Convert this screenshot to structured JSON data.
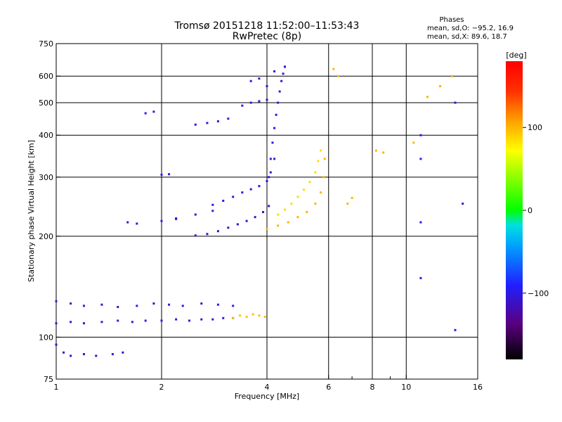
{
  "chart_data": {
    "type": "scatter",
    "title": "Tromsø 20151218 11:52:00–11:53:43",
    "subtitle": "RwPretec (8p)",
    "xlabel": "Frequency [MHz]",
    "ylabel": "Stationary phase Virtual Height [km]",
    "x_scale": "log2",
    "y_scale": "log",
    "xlim": [
      1,
      16
    ],
    "ylim": [
      75,
      750
    ],
    "x_ticks": [
      1,
      2,
      4,
      6,
      8,
      10,
      16
    ],
    "x_tick_labels": [
      "1",
      "2",
      "4",
      "6",
      "8",
      "10",
      "16"
    ],
    "x_minor_ticks": [
      7,
      9
    ],
    "y_ticks": [
      75,
      100,
      200,
      300,
      400,
      500,
      600,
      750
    ],
    "y_tick_labels": [
      "75",
      "100",
      "200",
      "300",
      "400",
      "500",
      "600",
      "750"
    ],
    "y_gridlines": [
      100,
      200,
      300,
      400,
      500,
      600
    ],
    "x_gridlines": [
      2,
      4,
      6,
      8,
      10
    ],
    "grid": true,
    "stats": {
      "heading": "Phases",
      "line1": "mean, sd,O: −95.2, 16.9",
      "line2": "mean, sd,X:  89.6, 18.7"
    },
    "colorbar": {
      "label": "[deg]",
      "min": -180,
      "max": 180,
      "ticks": [
        100,
        0,
        -100
      ],
      "tick_labels": [
        "100",
        "0",
        "−100"
      ],
      "colormap": "rainbow"
    },
    "series": [
      {
        "phase": -100,
        "x": [
          1.0,
          1.1,
          1.2,
          1.35,
          1.5,
          1.65,
          1.8,
          2.0,
          2.2,
          2.4,
          2.6,
          2.8,
          3.0,
          3.2
        ],
        "y": [
          110,
          111,
          110,
          111,
          112,
          111,
          112,
          112,
          113,
          112,
          113,
          113,
          114,
          114
        ]
      },
      {
        "phase": -100,
        "x": [
          1.0,
          1.1,
          1.2,
          1.35,
          1.5,
          1.7,
          1.9,
          2.1,
          2.3,
          2.6,
          2.9,
          3.2
        ],
        "y": [
          128,
          126,
          124,
          125,
          123,
          124,
          126,
          125,
          124,
          126,
          125,
          124
        ]
      },
      {
        "phase": 95,
        "x": [
          3.2,
          3.35,
          3.5,
          3.65,
          3.8,
          3.95
        ],
        "y": [
          114,
          116,
          115,
          117,
          116,
          115
        ]
      },
      {
        "phase": -110,
        "x": [
          1.0,
          1.05,
          1.1,
          1.2,
          1.3,
          1.45,
          1.55
        ],
        "y": [
          95,
          90,
          88,
          89,
          88,
          89,
          90
        ]
      },
      {
        "phase": -110,
        "x": [
          2.5,
          2.7,
          2.9,
          3.1,
          3.3,
          3.5,
          3.7,
          3.9,
          4.05
        ],
        "y": [
          201,
          203,
          207,
          212,
          217,
          222,
          228,
          236,
          246
        ]
      },
      {
        "phase": -105,
        "x": [
          2.8,
          3.0,
          3.2,
          3.4,
          3.6,
          3.8,
          4.0,
          4.1,
          4.2
        ],
        "y": [
          248,
          255,
          262,
          270,
          276,
          282,
          292,
          310,
          340
        ]
      },
      {
        "phase": -100,
        "x": [
          4.05,
          4.1,
          4.15,
          4.2,
          4.25,
          4.3,
          4.35,
          4.4,
          4.45,
          4.5
        ],
        "y": [
          300,
          340,
          380,
          420,
          460,
          500,
          540,
          580,
          610,
          640
        ]
      },
      {
        "phase": 100,
        "x": [
          4.0,
          4.3,
          4.6,
          4.9,
          5.2,
          5.5,
          5.7,
          5.8,
          5.85
        ],
        "y": [
          210,
          215,
          220,
          228,
          236,
          250,
          270,
          300,
          340
        ]
      },
      {
        "phase": 85,
        "x": [
          4.3,
          4.5,
          4.7,
          4.9,
          5.1,
          5.3,
          5.5,
          5.6,
          5.7
        ],
        "y": [
          232,
          240,
          250,
          262,
          275,
          290,
          310,
          335,
          360
        ]
      },
      {
        "phase": -100,
        "x": [
          1.8,
          1.9,
          2.0,
          2.1,
          2.2
        ],
        "y": [
          465,
          470,
          305,
          306,
          225
        ]
      },
      {
        "phase": -100,
        "x": [
          2.5,
          2.7,
          2.9,
          3.1
        ],
        "y": [
          430,
          435,
          440,
          448
        ]
      },
      {
        "phase": -100,
        "x": [
          1.6,
          1.7,
          2.0,
          2.2,
          2.5,
          2.8
        ],
        "y": [
          220,
          218,
          222,
          226,
          232,
          238
        ]
      },
      {
        "phase": -100,
        "x": [
          3.4,
          3.6,
          3.8,
          4.0
        ],
        "y": [
          490,
          500,
          505,
          510
        ]
      },
      {
        "phase": -100,
        "x": [
          3.6,
          3.8,
          4.0,
          4.2,
          4.5
        ],
        "y": [
          580,
          590,
          560,
          620,
          640
        ]
      },
      {
        "phase": 100,
        "x": [
          6.2,
          6.4,
          6.8,
          7.0,
          8.2,
          8.6,
          10.5,
          11.5,
          12.5,
          13.5
        ],
        "y": [
          630,
          600,
          250,
          260,
          360,
          355,
          380,
          520,
          560,
          600
        ]
      },
      {
        "phase": -100,
        "x": [
          11.0,
          11.0,
          11.0,
          11.0,
          13.8,
          13.8,
          14.5
        ],
        "y": [
          400,
          220,
          150,
          340,
          500,
          105,
          250
        ]
      }
    ]
  }
}
